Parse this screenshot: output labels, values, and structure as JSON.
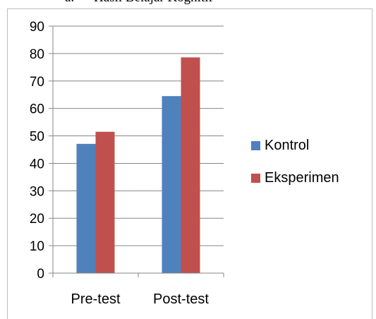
{
  "heading": {
    "number": "a.",
    "text": "Hasil Belajar Kognitif"
  },
  "colors": {
    "series_1": "#4f81bd",
    "series_2": "#c0504d",
    "gridline": "#868686",
    "axis": "#868686"
  },
  "chart_data": {
    "type": "bar",
    "title": "",
    "xlabel": "",
    "ylabel": "",
    "categories": [
      "Pre-test",
      "Post-test"
    ],
    "series": [
      {
        "name": "Kontrol",
        "values": [
          47.1,
          64.5
        ]
      },
      {
        "name": "Eksperimen",
        "values": [
          51.5,
          78.6
        ]
      }
    ],
    "ylim": [
      0,
      90
    ],
    "yticks": [
      "0",
      "10",
      "20",
      "30",
      "40",
      "50",
      "60",
      "70",
      "80",
      "90"
    ],
    "grid": true,
    "legend_position": "right"
  }
}
